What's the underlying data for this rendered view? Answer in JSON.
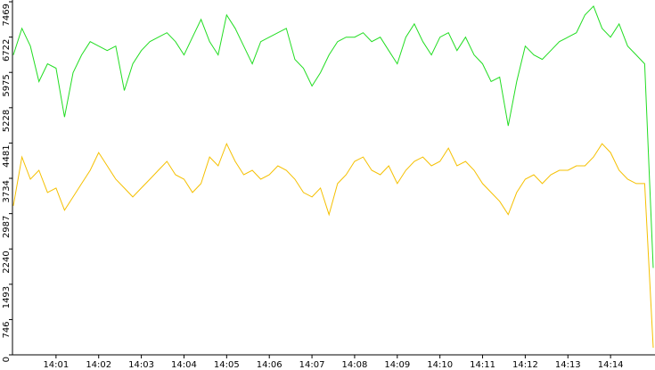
{
  "chart_data": {
    "type": "line",
    "categories": [
      null,
      null,
      null,
      null,
      null,
      "14:01",
      null,
      null,
      null,
      null,
      "14:02",
      null,
      null,
      null,
      null,
      "14:03",
      null,
      null,
      null,
      null,
      "14:04",
      null,
      null,
      null,
      null,
      "14:05",
      null,
      null,
      null,
      null,
      "14:06",
      null,
      null,
      null,
      null,
      "14:07",
      null,
      null,
      null,
      null,
      "14:08",
      null,
      null,
      null,
      null,
      "14:09",
      null,
      null,
      null,
      null,
      "14:10",
      null,
      null,
      null,
      null,
      "14:11",
      null,
      null,
      null,
      null,
      "14:12",
      null,
      null,
      null,
      null,
      "14:13",
      null,
      null,
      null,
      null,
      "14:14",
      null,
      null,
      null,
      null,
      null
    ],
    "series": [
      {
        "color": "#22dd22",
        "values": [
          6344,
          6907,
          6532,
          5781,
          6157,
          6063,
          5030,
          5969,
          6344,
          6626,
          6532,
          6438,
          6532,
          5593,
          6157,
          6438,
          6626,
          6720,
          6814,
          6626,
          6344,
          6720,
          7095,
          6626,
          6344,
          7189,
          6907,
          6532,
          6157,
          6626,
          6720,
          6814,
          6907,
          6250,
          6063,
          5687,
          5969,
          6344,
          6626,
          6720,
          6720,
          6814,
          6626,
          6720,
          6438,
          6157,
          6720,
          7001,
          6626,
          6344,
          6720,
          6814,
          6438,
          6720,
          6344,
          6157,
          5781,
          5875,
          4843,
          5781,
          6532,
          6344,
          6250,
          6438,
          6626,
          6720,
          6814,
          7189,
          7377,
          6907,
          6720,
          7001,
          6532,
          6344,
          6157,
          1839
        ]
      },
      {
        "color": "#f5c000",
        "values": [
          3153,
          4186,
          3716,
          3904,
          3435,
          3529,
          3060,
          3341,
          3623,
          3904,
          4280,
          3998,
          3716,
          3529,
          3341,
          3529,
          3716,
          3904,
          4092,
          3810,
          3716,
          3435,
          3623,
          4186,
          3998,
          4467,
          4092,
          3810,
          3904,
          3716,
          3810,
          3998,
          3904,
          3716,
          3435,
          3341,
          3529,
          2966,
          3623,
          3810,
          4092,
          4186,
          3904,
          3810,
          3998,
          3623,
          3904,
          4092,
          4186,
          3998,
          4092,
          4373,
          3998,
          4092,
          3904,
          3623,
          3435,
          3247,
          2966,
          3435,
          3716,
          3810,
          3623,
          3810,
          3904,
          3904,
          3998,
          3998,
          4186,
          4467,
          4280,
          3904,
          3716,
          3623,
          3623,
          150
        ]
      }
    ],
    "ylim": [
      0,
      7469
    ],
    "yticks": [
      0,
      746,
      1493,
      2240,
      2987,
      3734,
      4481,
      5228,
      5975,
      6722,
      7469
    ]
  }
}
